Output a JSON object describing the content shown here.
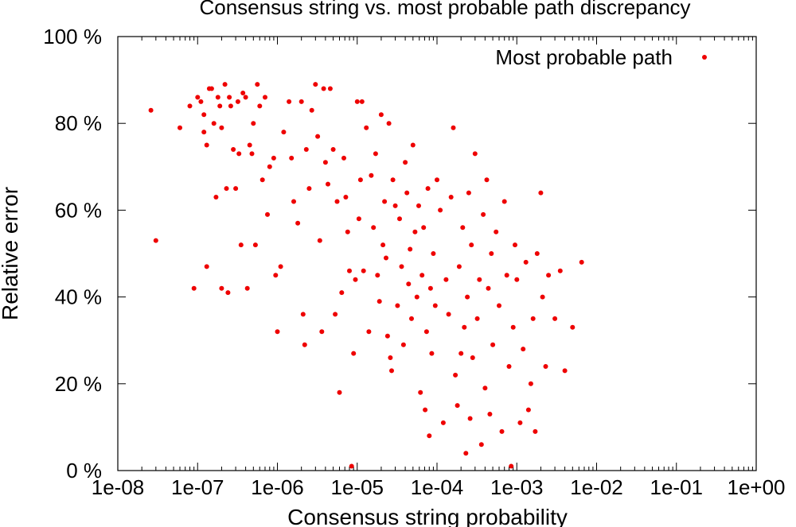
{
  "chart_data": {
    "type": "scatter",
    "title": "Consensus string vs. most probable path discrepancy",
    "xlabel": "Consensus string probability",
    "ylabel": "Relative error",
    "xscale": "log",
    "xlim": [
      1e-08,
      1
    ],
    "ylim": [
      0,
      100
    ],
    "x_tick_labels": [
      "1e-08",
      "1e-07",
      "1e-06",
      "1e-05",
      "1e-04",
      "1e-03",
      "1e-02",
      "1e-01",
      "1e+00"
    ],
    "y_ticks": [
      0,
      20,
      40,
      60,
      80,
      100
    ],
    "y_tick_labels": [
      "0 %",
      "20 %",
      "40 %",
      "60 %",
      "80 %",
      "100 %"
    ],
    "legend_position": "top-right",
    "marker_color": "#ee0000",
    "series": [
      {
        "name": "Most probable path",
        "points": [
          [
            2.6e-08,
            83
          ],
          [
            3e-08,
            53
          ],
          [
            6e-08,
            79
          ],
          [
            8e-08,
            84
          ],
          [
            9e-08,
            42
          ],
          [
            1e-07,
            86
          ],
          [
            1.1e-07,
            85
          ],
          [
            1.2e-07,
            82
          ],
          [
            1.2e-07,
            78
          ],
          [
            1.3e-07,
            75
          ],
          [
            1.3e-07,
            47
          ],
          [
            1.4e-07,
            88
          ],
          [
            1.5e-07,
            88
          ],
          [
            1.6e-07,
            80
          ],
          [
            1.7e-07,
            63
          ],
          [
            1.8e-07,
            86
          ],
          [
            1.9e-07,
            84
          ],
          [
            2e-07,
            79
          ],
          [
            2e-07,
            42
          ],
          [
            2.2e-07,
            89
          ],
          [
            2.3e-07,
            65
          ],
          [
            2.4e-07,
            41
          ],
          [
            2.5e-07,
            86
          ],
          [
            2.6e-07,
            84
          ],
          [
            2.8e-07,
            74
          ],
          [
            3e-07,
            65
          ],
          [
            3.2e-07,
            85
          ],
          [
            3.3e-07,
            73
          ],
          [
            3.5e-07,
            52
          ],
          [
            3.7e-07,
            87
          ],
          [
            4e-07,
            86
          ],
          [
            4.2e-07,
            42
          ],
          [
            4.5e-07,
            75
          ],
          [
            4.8e-07,
            73
          ],
          [
            5e-07,
            80
          ],
          [
            5.3e-07,
            52
          ],
          [
            5.6e-07,
            89
          ],
          [
            6e-07,
            84
          ],
          [
            6.5e-07,
            67
          ],
          [
            7e-07,
            86
          ],
          [
            7.5e-07,
            59
          ],
          [
            8e-07,
            70
          ],
          [
            9e-07,
            72
          ],
          [
            9.5e-07,
            45
          ],
          [
            1e-06,
            32
          ],
          [
            1.1e-06,
            47
          ],
          [
            1.2e-06,
            78
          ],
          [
            1.4e-06,
            85
          ],
          [
            1.5e-06,
            72
          ],
          [
            1.6e-06,
            62
          ],
          [
            1.8e-06,
            57
          ],
          [
            2e-06,
            85
          ],
          [
            2.1e-06,
            36
          ],
          [
            2.2e-06,
            29
          ],
          [
            2.3e-06,
            74
          ],
          [
            2.5e-06,
            65
          ],
          [
            2.7e-06,
            83
          ],
          [
            3e-06,
            89
          ],
          [
            3.2e-06,
            77
          ],
          [
            3.4e-06,
            53
          ],
          [
            3.6e-06,
            32
          ],
          [
            3.8e-06,
            88
          ],
          [
            4e-06,
            71
          ],
          [
            4.3e-06,
            66
          ],
          [
            4.6e-06,
            88
          ],
          [
            5e-06,
            74
          ],
          [
            5.3e-06,
            36
          ],
          [
            5.6e-06,
            62
          ],
          [
            6e-06,
            18
          ],
          [
            6.4e-06,
            41
          ],
          [
            6.8e-06,
            72
          ],
          [
            7.2e-06,
            63
          ],
          [
            7.6e-06,
            55
          ],
          [
            8e-06,
            46
          ],
          [
            8.5e-06,
            1
          ],
          [
            9e-06,
            27
          ],
          [
            9.5e-06,
            44
          ],
          [
            1e-05,
            85
          ],
          [
            1.05e-05,
            58
          ],
          [
            1.1e-05,
            67
          ],
          [
            1.15e-05,
            85
          ],
          [
            1.2e-05,
            46
          ],
          [
            1.3e-05,
            79
          ],
          [
            1.4e-05,
            32
          ],
          [
            1.5e-05,
            68
          ],
          [
            1.6e-05,
            56
          ],
          [
            1.7e-05,
            73
          ],
          [
            1.8e-05,
            45
          ],
          [
            1.9e-05,
            39
          ],
          [
            2e-05,
            82
          ],
          [
            2.1e-05,
            52
          ],
          [
            2.2e-05,
            62
          ],
          [
            2.3e-05,
            49
          ],
          [
            2.4e-05,
            31
          ],
          [
            2.5e-05,
            80
          ],
          [
            2.6e-05,
            26
          ],
          [
            2.7e-05,
            23
          ],
          [
            2.8e-05,
            67
          ],
          [
            3e-05,
            61
          ],
          [
            3.2e-05,
            38
          ],
          [
            3.4e-05,
            58
          ],
          [
            3.6e-05,
            47
          ],
          [
            3.8e-05,
            29
          ],
          [
            4e-05,
            71
          ],
          [
            4.2e-05,
            64
          ],
          [
            4.4e-05,
            43
          ],
          [
            4.6e-05,
            51
          ],
          [
            4.8e-05,
            35
          ],
          [
            5e-05,
            75
          ],
          [
            5.3e-05,
            55
          ],
          [
            5.6e-05,
            40
          ],
          [
            5.9e-05,
            61
          ],
          [
            6.2e-05,
            18
          ],
          [
            6.5e-05,
            45
          ],
          [
            6.8e-05,
            56
          ],
          [
            7.1e-05,
            14
          ],
          [
            7.4e-05,
            32
          ],
          [
            7.7e-05,
            65
          ],
          [
            8e-05,
            8
          ],
          [
            8.3e-05,
            42
          ],
          [
            8.6e-05,
            27
          ],
          [
            9e-05,
            50
          ],
          [
            9.5e-05,
            38
          ],
          [
            0.0001,
            67
          ],
          [
            0.00011,
            60
          ],
          [
            0.00012,
            11
          ],
          [
            0.00013,
            44
          ],
          [
            0.00014,
            36
          ],
          [
            0.00015,
            63
          ],
          [
            0.00016,
            79
          ],
          [
            0.00017,
            22
          ],
          [
            0.00018,
            15
          ],
          [
            0.00019,
            47
          ],
          [
            0.0002,
            27
          ],
          [
            0.00021,
            56
          ],
          [
            0.00022,
            33
          ],
          [
            0.00023,
            4
          ],
          [
            0.00024,
            40
          ],
          [
            0.00025,
            64
          ],
          [
            0.00026,
            12
          ],
          [
            0.00027,
            52
          ],
          [
            0.00028,
            26
          ],
          [
            0.0003,
            73
          ],
          [
            0.00032,
            35
          ],
          [
            0.00034,
            44
          ],
          [
            0.00036,
            6
          ],
          [
            0.00038,
            59
          ],
          [
            0.0004,
            19
          ],
          [
            0.00042,
            67
          ],
          [
            0.00044,
            42
          ],
          [
            0.00046,
            13
          ],
          [
            0.00048,
            50
          ],
          [
            0.0005,
            29
          ],
          [
            0.00055,
            55
          ],
          [
            0.0006,
            38
          ],
          [
            0.00065,
            9
          ],
          [
            0.0007,
            62
          ],
          [
            0.00075,
            45
          ],
          [
            0.0008,
            24
          ],
          [
            0.00085,
            1
          ],
          [
            0.0009,
            33
          ],
          [
            0.00095,
            52
          ],
          [
            0.001,
            44
          ],
          [
            0.0011,
            11
          ],
          [
            0.0012,
            28
          ],
          [
            0.0013,
            48
          ],
          [
            0.0014,
            14
          ],
          [
            0.0015,
            20
          ],
          [
            0.0016,
            35
          ],
          [
            0.0017,
            9
          ],
          [
            0.0018,
            50
          ],
          [
            0.002,
            64
          ],
          [
            0.0021,
            40
          ],
          [
            0.0023,
            24
          ],
          [
            0.0025,
            45
          ],
          [
            0.003,
            35
          ],
          [
            0.0035,
            46
          ],
          [
            0.004,
            23
          ],
          [
            0.005,
            33
          ],
          [
            0.0065,
            48
          ]
        ]
      }
    ]
  }
}
